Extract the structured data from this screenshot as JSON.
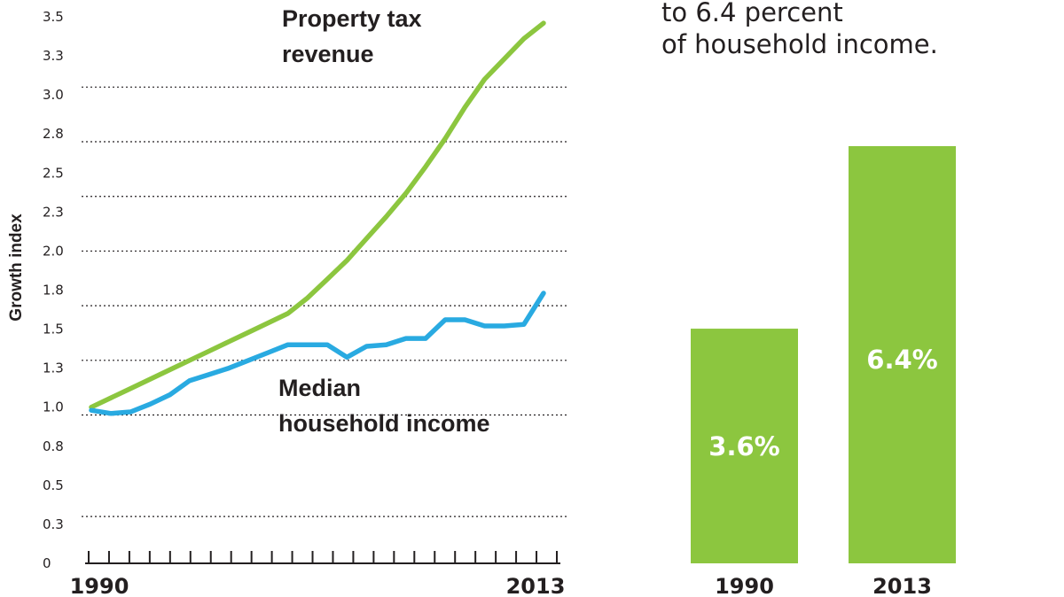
{
  "heading_lines": [
    "to 6.4 percent",
    "of household income."
  ],
  "chart_data": [
    {
      "type": "line",
      "ylabel": "Growth index",
      "y_ticks": [
        "3.5",
        "3.3",
        "3.0",
        "2.8",
        "2.5",
        "2.3",
        "2.0",
        "1.8",
        "1.5",
        "1.3",
        "1.0",
        "0.8",
        "0.5",
        "0.3",
        "0"
      ],
      "x_tick_labels": [
        "1990",
        "2013"
      ],
      "ylim": [
        0,
        3.5
      ],
      "x": [
        1990,
        1991,
        1992,
        1993,
        1994,
        1995,
        1996,
        1997,
        1998,
        1999,
        2000,
        2001,
        2002,
        2003,
        2004,
        2005,
        2006,
        2007,
        2008,
        2009,
        2010,
        2011,
        2012,
        2013
      ],
      "series": [
        {
          "name": "Property tax revenue",
          "name_lines": [
            "Property tax",
            "revenue"
          ],
          "color": "#8cc63f",
          "values": [
            1.0,
            1.06,
            1.12,
            1.18,
            1.24,
            1.3,
            1.36,
            1.42,
            1.48,
            1.54,
            1.6,
            1.7,
            1.82,
            1.94,
            2.08,
            2.22,
            2.37,
            2.54,
            2.72,
            2.92,
            3.1,
            3.23,
            3.36,
            3.46
          ]
        },
        {
          "name": "Median household income",
          "name_lines": [
            "Median",
            "household income"
          ],
          "color": "#29aae1",
          "values": [
            0.98,
            0.96,
            0.97,
            1.02,
            1.08,
            1.17,
            1.21,
            1.25,
            1.3,
            1.35,
            1.4,
            1.4,
            1.4,
            1.32,
            1.39,
            1.4,
            1.44,
            1.44,
            1.56,
            1.56,
            1.52,
            1.52,
            1.53,
            1.73
          ]
        }
      ]
    },
    {
      "type": "bar",
      "categories": [
        "1990",
        "2013"
      ],
      "values": [
        3.6,
        6.4
      ],
      "value_labels": [
        "3.6%",
        "6.4%"
      ],
      "color": "#8cc63f"
    }
  ]
}
